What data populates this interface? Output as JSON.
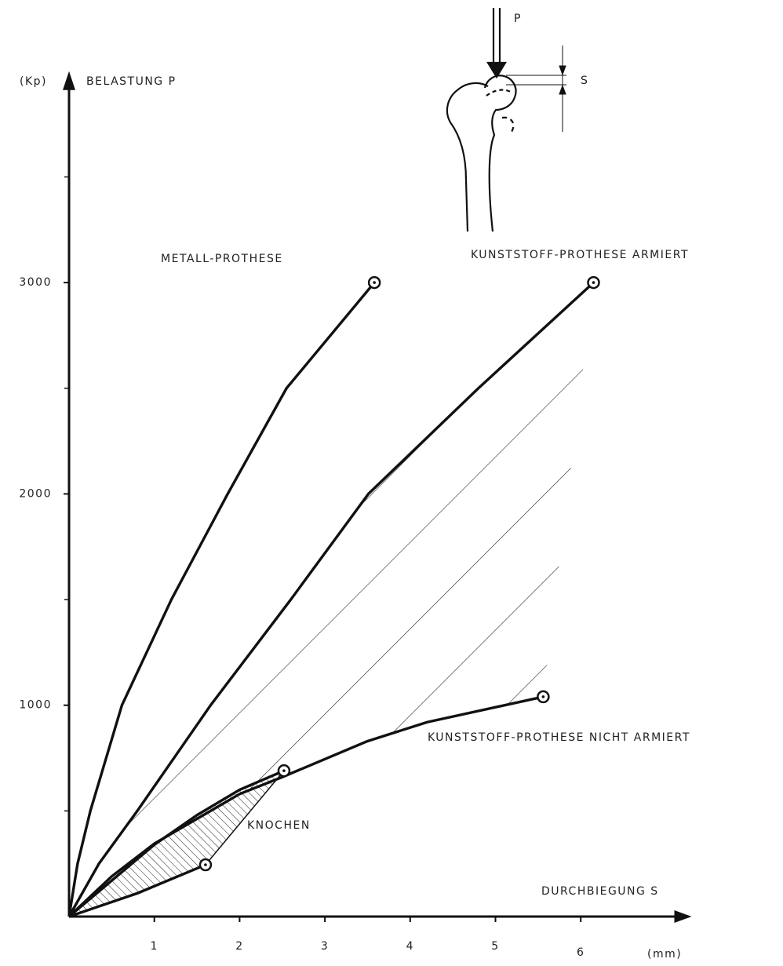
{
  "chart_data": {
    "type": "line",
    "y_unit": "(Kp)",
    "y_label": "BELASTUNG  P",
    "x_label": "DURCHBIEGUNG  S",
    "x_unit": "(mm)",
    "xlim": [
      0,
      7.3
    ],
    "ylim": [
      0,
      4000
    ],
    "xticks": [
      1,
      2,
      3,
      4,
      5,
      6
    ],
    "yticks": [
      1000,
      2000,
      3000
    ],
    "y_minor_ticks": [
      500,
      1500,
      2500,
      3500
    ],
    "series": [
      {
        "name": "METALL-PROTHESE",
        "color": "#111111",
        "x": [
          0,
          0.1,
          0.25,
          0.62,
          1.2,
          1.86,
          2.55,
          3.58
        ],
        "values": [
          0,
          250,
          500,
          1000,
          1500,
          2000,
          2500,
          3000
        ]
      },
      {
        "name": "KUNSTSTOFF-PROTHESE   ARMIERT",
        "color": "#111111",
        "x": [
          0,
          0.35,
          0.8,
          1.66,
          2.6,
          3.51,
          4.8,
          6.15
        ],
        "values": [
          0,
          250,
          500,
          1000,
          1500,
          2000,
          2500,
          3000
        ]
      },
      {
        "name": "KUNSTSTOFF-PROTHESE NICHT ARMIERT",
        "color": "#111111",
        "x": [
          0,
          0.5,
          1,
          2,
          2.5,
          3.5,
          4.2,
          5.56
        ],
        "values": [
          0,
          190,
          345,
          580,
          660,
          830,
          920,
          1040
        ]
      },
      {
        "name": "KNOCHEN",
        "color": "#111111",
        "x": [
          0,
          0.5,
          1,
          1.5,
          2,
          2.52,
          null,
          0,
          0.8,
          1.6
        ],
        "values": [
          0,
          170,
          340,
          480,
          600,
          690,
          null,
          0,
          110,
          245
        ]
      }
    ],
    "inset": {
      "load_label": "P",
      "deflection_label": "S"
    }
  }
}
